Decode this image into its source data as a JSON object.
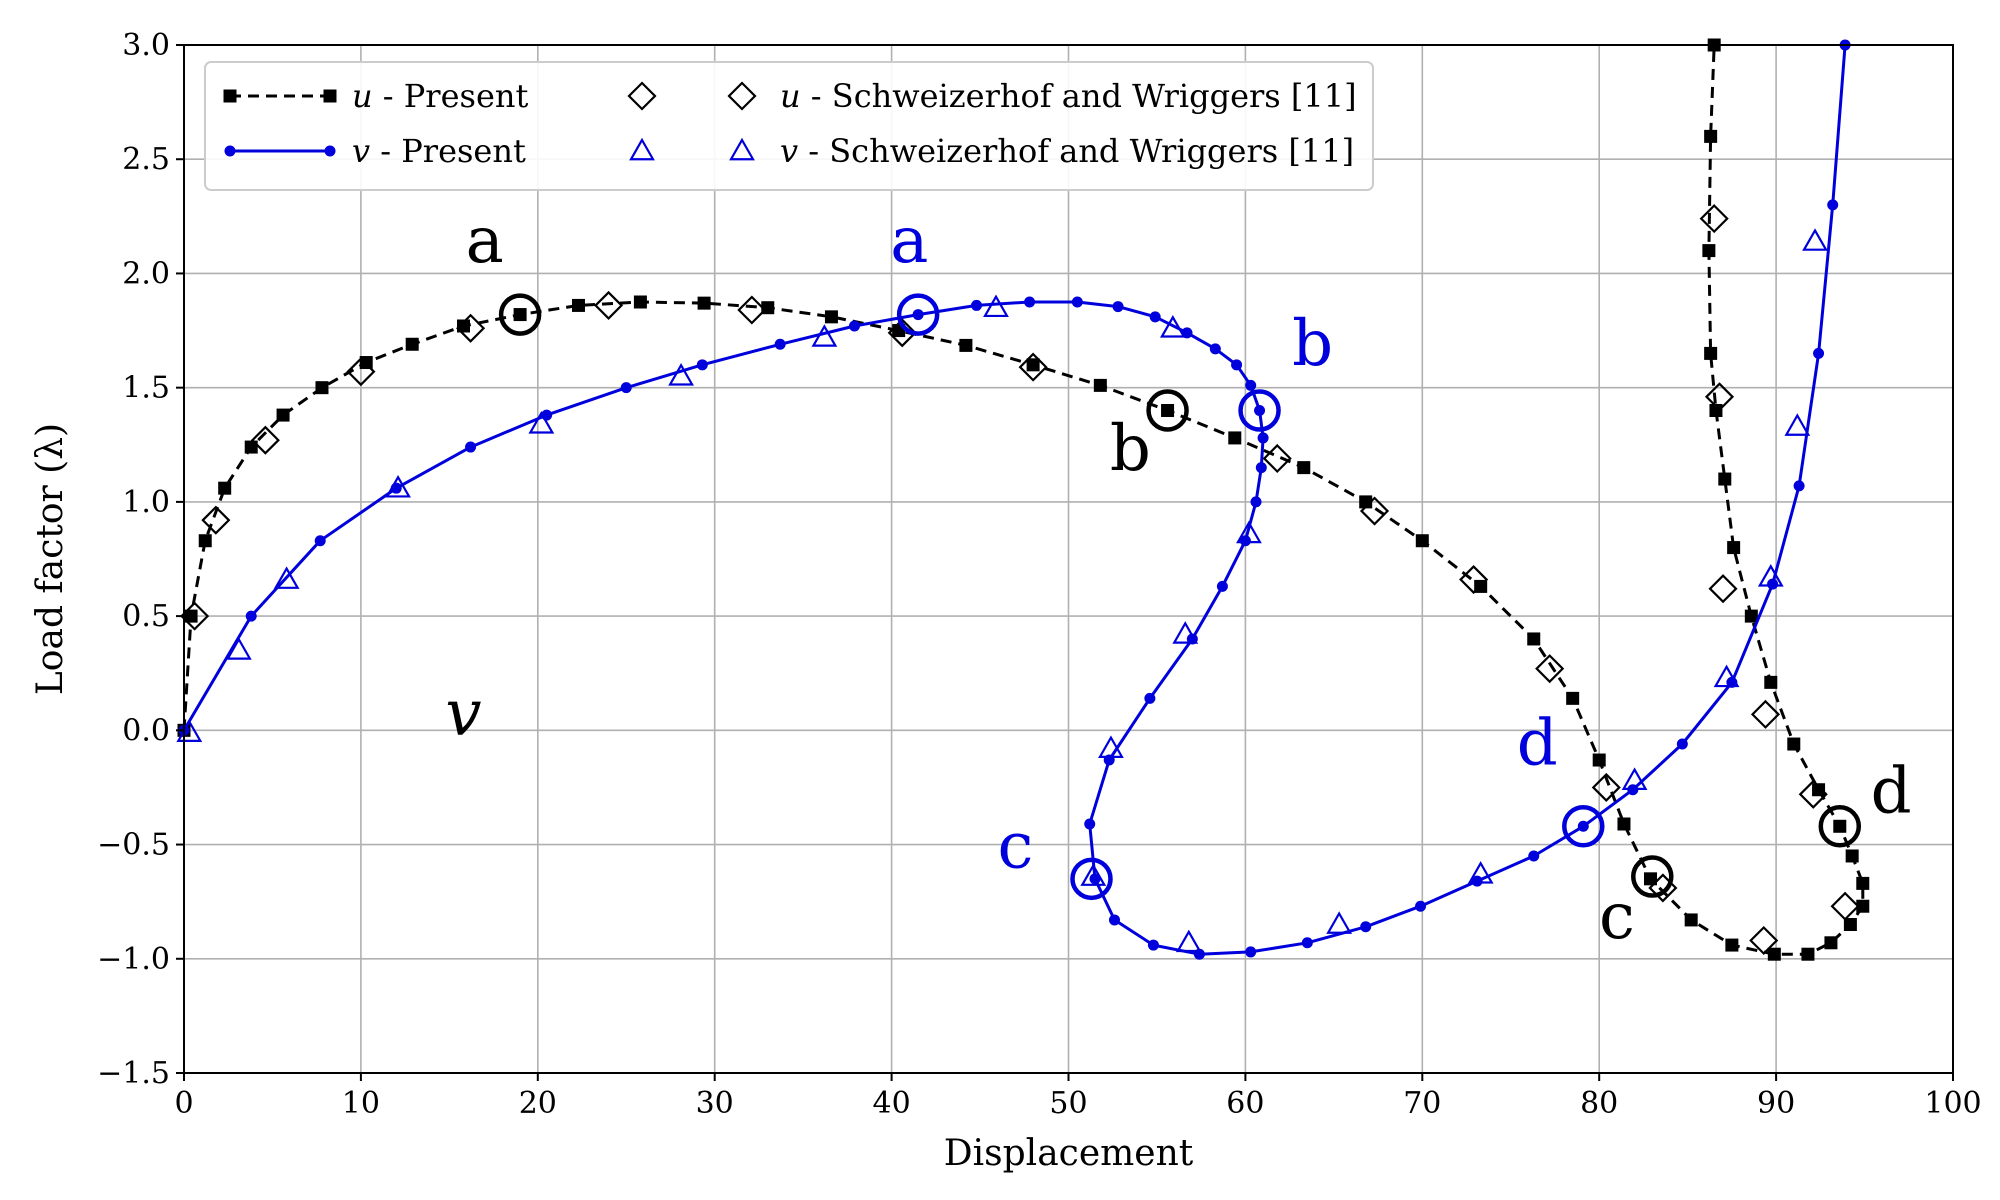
{
  "chart_data": {
    "type": "line",
    "title": "",
    "xlabel": "Displacement",
    "ylabel": "Load factor (λ)",
    "xlim": [
      0,
      100
    ],
    "ylim": [
      -1.5,
      3.0
    ],
    "xticks": [
      0,
      10,
      20,
      30,
      40,
      50,
      60,
      70,
      80,
      90,
      100
    ],
    "yticks": [
      -1.5,
      -1.0,
      -0.5,
      0.0,
      0.5,
      1.0,
      1.5,
      2.0,
      2.5,
      3.0
    ],
    "ytick_labels": [
      "−1.5",
      "−1.0",
      "−0.5",
      "0.0",
      "0.5",
      "1.0",
      "1.5",
      "2.0",
      "2.5",
      "3.0"
    ],
    "grid": true,
    "legend_position": "upper-left",
    "series": [
      {
        "name": "u - Present",
        "var": "u",
        "rest": " - Present",
        "color": "#000000",
        "style": "dashed",
        "marker": "square",
        "points": [
          [
            0,
            0
          ],
          [
            0.4,
            0.5
          ],
          [
            1.2,
            0.83
          ],
          [
            2.3,
            1.06
          ],
          [
            3.8,
            1.24
          ],
          [
            5.6,
            1.38
          ],
          [
            7.8,
            1.5
          ],
          [
            10.3,
            1.61
          ],
          [
            12.9,
            1.69
          ],
          [
            15.8,
            1.77
          ],
          [
            19,
            1.82
          ],
          [
            22.3,
            1.86
          ],
          [
            25.8,
            1.875
          ],
          [
            29.4,
            1.87
          ],
          [
            33,
            1.85
          ],
          [
            36.6,
            1.81
          ],
          [
            40.4,
            1.75
          ],
          [
            44.2,
            1.685
          ],
          [
            48,
            1.6
          ],
          [
            51.8,
            1.51
          ],
          [
            55.6,
            1.4
          ],
          [
            59.4,
            1.28
          ],
          [
            63.3,
            1.15
          ],
          [
            66.8,
            1.0
          ],
          [
            70,
            0.83
          ],
          [
            73.3,
            0.63
          ],
          [
            76.3,
            0.4
          ],
          [
            78.5,
            0.14
          ],
          [
            80,
            -0.13
          ],
          [
            81.4,
            -0.41
          ],
          [
            82.9,
            -0.65
          ],
          [
            85.2,
            -0.83
          ],
          [
            87.5,
            -0.94
          ],
          [
            89.9,
            -0.98
          ],
          [
            91.8,
            -0.98
          ],
          [
            93.1,
            -0.93
          ],
          [
            94.2,
            -0.85
          ],
          [
            94.9,
            -0.77
          ],
          [
            94.9,
            -0.67
          ],
          [
            94.3,
            -0.55
          ],
          [
            93.6,
            -0.42
          ],
          [
            92.4,
            -0.26
          ],
          [
            91,
            -0.06
          ],
          [
            89.7,
            0.21
          ],
          [
            88.6,
            0.5
          ],
          [
            87.6,
            0.8
          ],
          [
            87.1,
            1.1
          ],
          [
            86.6,
            1.4
          ],
          [
            86.3,
            1.65
          ],
          [
            86.2,
            2.1
          ],
          [
            86.3,
            2.6
          ],
          [
            86.5,
            3.0
          ]
        ]
      },
      {
        "name": "v - Present",
        "var": "v",
        "rest": " - Present",
        "color": "#0000dd",
        "style": "solid",
        "marker": "circle",
        "points": [
          [
            0,
            0
          ],
          [
            3.8,
            0.5
          ],
          [
            7.7,
            0.83
          ],
          [
            12,
            1.06
          ],
          [
            16.2,
            1.24
          ],
          [
            20.5,
            1.38
          ],
          [
            25,
            1.5
          ],
          [
            29.3,
            1.6
          ],
          [
            33.7,
            1.69
          ],
          [
            37.9,
            1.77
          ],
          [
            41.5,
            1.82
          ],
          [
            44.8,
            1.86
          ],
          [
            47.8,
            1.875
          ],
          [
            50.5,
            1.875
          ],
          [
            52.8,
            1.855
          ],
          [
            54.9,
            1.81
          ],
          [
            56.7,
            1.74
          ],
          [
            58.3,
            1.67
          ],
          [
            59.5,
            1.6
          ],
          [
            60.3,
            1.51
          ],
          [
            60.8,
            1.4
          ],
          [
            61.0,
            1.28
          ],
          [
            60.9,
            1.15
          ],
          [
            60.6,
            1.0
          ],
          [
            60.0,
            0.83
          ],
          [
            58.7,
            0.63
          ],
          [
            57.0,
            0.4
          ],
          [
            54.6,
            0.14
          ],
          [
            52.3,
            -0.13
          ],
          [
            51.2,
            -0.41
          ],
          [
            51.5,
            -0.65
          ],
          [
            52.6,
            -0.83
          ],
          [
            54.8,
            -0.94
          ],
          [
            57.4,
            -0.98
          ],
          [
            60.3,
            -0.97
          ],
          [
            63.5,
            -0.93
          ],
          [
            66.8,
            -0.86
          ],
          [
            69.9,
            -0.77
          ],
          [
            73.1,
            -0.66
          ],
          [
            76.3,
            -0.55
          ],
          [
            79.1,
            -0.42
          ],
          [
            81.9,
            -0.26
          ],
          [
            84.7,
            -0.06
          ],
          [
            87.5,
            0.21
          ],
          [
            89.8,
            0.64
          ],
          [
            91.3,
            1.07
          ],
          [
            92.4,
            1.65
          ],
          [
            93.2,
            2.3
          ],
          [
            93.9,
            3.0
          ]
        ]
      },
      {
        "name": "u - Schweizerhof and Wriggers [11]",
        "var": "u",
        "rest": " - Schweizerhof and Wriggers [11]",
        "color": "#000000",
        "style": "none",
        "marker": "diamond",
        "points": [
          [
            0.6,
            0.5
          ],
          [
            1.8,
            0.92
          ],
          [
            4.6,
            1.27
          ],
          [
            10,
            1.57
          ],
          [
            16.2,
            1.76
          ],
          [
            24,
            1.86
          ],
          [
            32.1,
            1.84
          ],
          [
            40.6,
            1.74
          ],
          [
            48,
            1.59
          ],
          [
            61.8,
            1.19
          ],
          [
            67.3,
            0.96
          ],
          [
            72.9,
            0.66
          ],
          [
            77.2,
            0.27
          ],
          [
            80.4,
            -0.25
          ],
          [
            83.6,
            -0.69
          ],
          [
            89.3,
            -0.92
          ],
          [
            93.9,
            -0.77
          ],
          [
            92.1,
            -0.28
          ],
          [
            89.4,
            0.07
          ],
          [
            87,
            0.62
          ],
          [
            86.8,
            1.46
          ],
          [
            86.5,
            2.24
          ]
        ]
      },
      {
        "name": "v - Schweizerhof and Wriggers [11]",
        "var": "v",
        "rest": " - Schweizerhof and Wriggers [11]",
        "color": "#0000dd",
        "style": "none",
        "marker": "triangle",
        "points": [
          [
            0.3,
            -0.01
          ],
          [
            3.1,
            0.35
          ],
          [
            5.8,
            0.66
          ],
          [
            12.1,
            1.06
          ],
          [
            20.2,
            1.34
          ],
          [
            28.1,
            1.55
          ],
          [
            36.2,
            1.72
          ],
          [
            45.9,
            1.85
          ],
          [
            55.9,
            1.76
          ],
          [
            60.2,
            0.86
          ],
          [
            56.6,
            0.42
          ],
          [
            52.4,
            -0.08
          ],
          [
            51.4,
            -0.64
          ],
          [
            56.8,
            -0.93
          ],
          [
            65.3,
            -0.85
          ],
          [
            73.3,
            -0.63
          ],
          [
            82,
            -0.22
          ],
          [
            87.2,
            0.23
          ],
          [
            89.7,
            0.67
          ],
          [
            91.2,
            1.33
          ],
          [
            92.2,
            2.14
          ]
        ]
      }
    ],
    "annotations": [
      {
        "text": "a",
        "color": "#000000",
        "point": [
          19,
          1.82
        ],
        "label_at": [
          17,
          2.05
        ]
      },
      {
        "text": "b",
        "color": "#000000",
        "point": [
          55.6,
          1.4
        ],
        "label_at": [
          53.5,
          1.14
        ]
      },
      {
        "text": "c",
        "color": "#000000",
        "point": [
          83,
          -0.64
        ],
        "label_at": [
          81,
          -0.91
        ]
      },
      {
        "text": "d",
        "color": "#000000",
        "point": [
          93.6,
          -0.42
        ],
        "label_at": [
          96.5,
          -0.36
        ]
      },
      {
        "text": "a",
        "color": "#0000dd",
        "point": [
          41.5,
          1.82
        ],
        "label_at": [
          41,
          2.05
        ]
      },
      {
        "text": "b",
        "color": "#0000dd",
        "point": [
          60.8,
          1.4
        ],
        "label_at": [
          63.8,
          1.6
        ]
      },
      {
        "text": "c",
        "color": "#0000dd",
        "point": [
          51.3,
          -0.65
        ],
        "label_at": [
          47,
          -0.6
        ]
      },
      {
        "text": "d",
        "color": "#0000dd",
        "point": [
          79.1,
          -0.42
        ],
        "label_at": [
          76.5,
          -0.15
        ]
      }
    ],
    "text_labels": [
      {
        "text": "v",
        "at": [
          15.8,
          -0.02
        ]
      }
    ]
  }
}
